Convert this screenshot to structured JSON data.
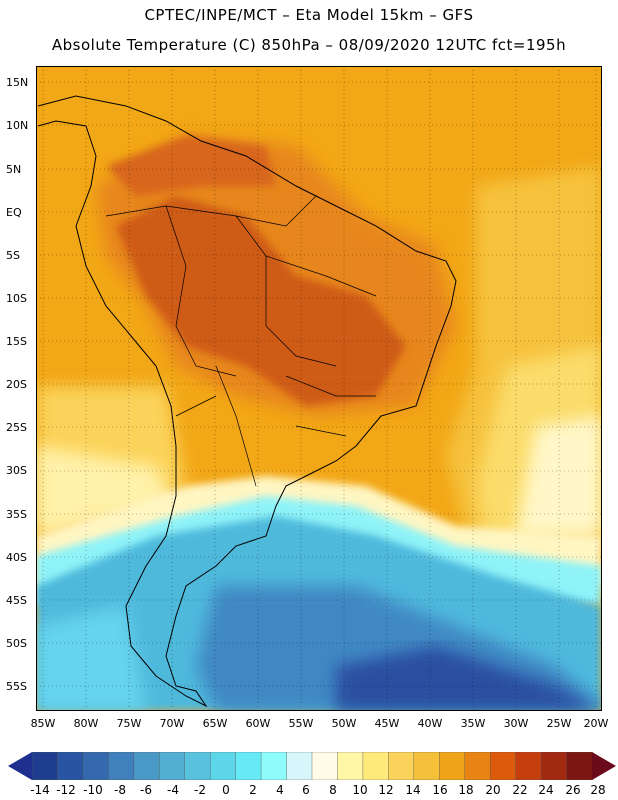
{
  "header": {
    "line1": "CPTEC/INPE/MCT –  Eta Model 15km – GFS",
    "line2": "Absolute Temperature (C) 850hPa – 08/09/2020 12UTC fct=195h"
  },
  "axes": {
    "lat_labels": [
      "15N",
      "10N",
      "5N",
      "EQ",
      "5S",
      "10S",
      "15S",
      "20S",
      "25S",
      "30S",
      "35S",
      "40S",
      "45S",
      "50S",
      "55S"
    ],
    "lon_labels": [
      "85W",
      "80W",
      "75W",
      "70W",
      "65W",
      "60W",
      "55W",
      "50W",
      "45W",
      "40W",
      "35W",
      "30W",
      "25W",
      "20W"
    ]
  },
  "colorbar": {
    "labels": [
      "-14",
      "-12",
      "-10",
      "-8",
      "-6",
      "-4",
      "-2",
      "0",
      "2",
      "4",
      "6",
      "8",
      "10",
      "12",
      "14",
      "16",
      "18",
      "20",
      "22",
      "24",
      "26",
      "28"
    ],
    "under_color": "#1f2f8f",
    "over_color": "#6b0a1a",
    "colors": [
      "#1f3d8e",
      "#2854a2",
      "#3469ae",
      "#3f80bd",
      "#4a98c6",
      "#52aed2",
      "#58c2de",
      "#5dd6ea",
      "#66eaf6",
      "#8ffcfc",
      "#d6f6fb",
      "#fffbe6",
      "#fff7a6",
      "#ffe97a",
      "#fbd35a",
      "#f5c03a",
      "#efa418",
      "#e78414",
      "#dc5a0c",
      "#c43f0d",
      "#a0290f",
      "#7b1610"
    ]
  },
  "palette": {
    "warm_background": "#f2a716",
    "hot": "#e7861a",
    "very_hot": "#cf5c14",
    "ocean_mid": "#f8c23e",
    "cool_band": "#8ff3f8",
    "cold_sea": "#4fb9dc",
    "deep_cold": "#2b4fa0",
    "coast_line": "#000000"
  }
}
